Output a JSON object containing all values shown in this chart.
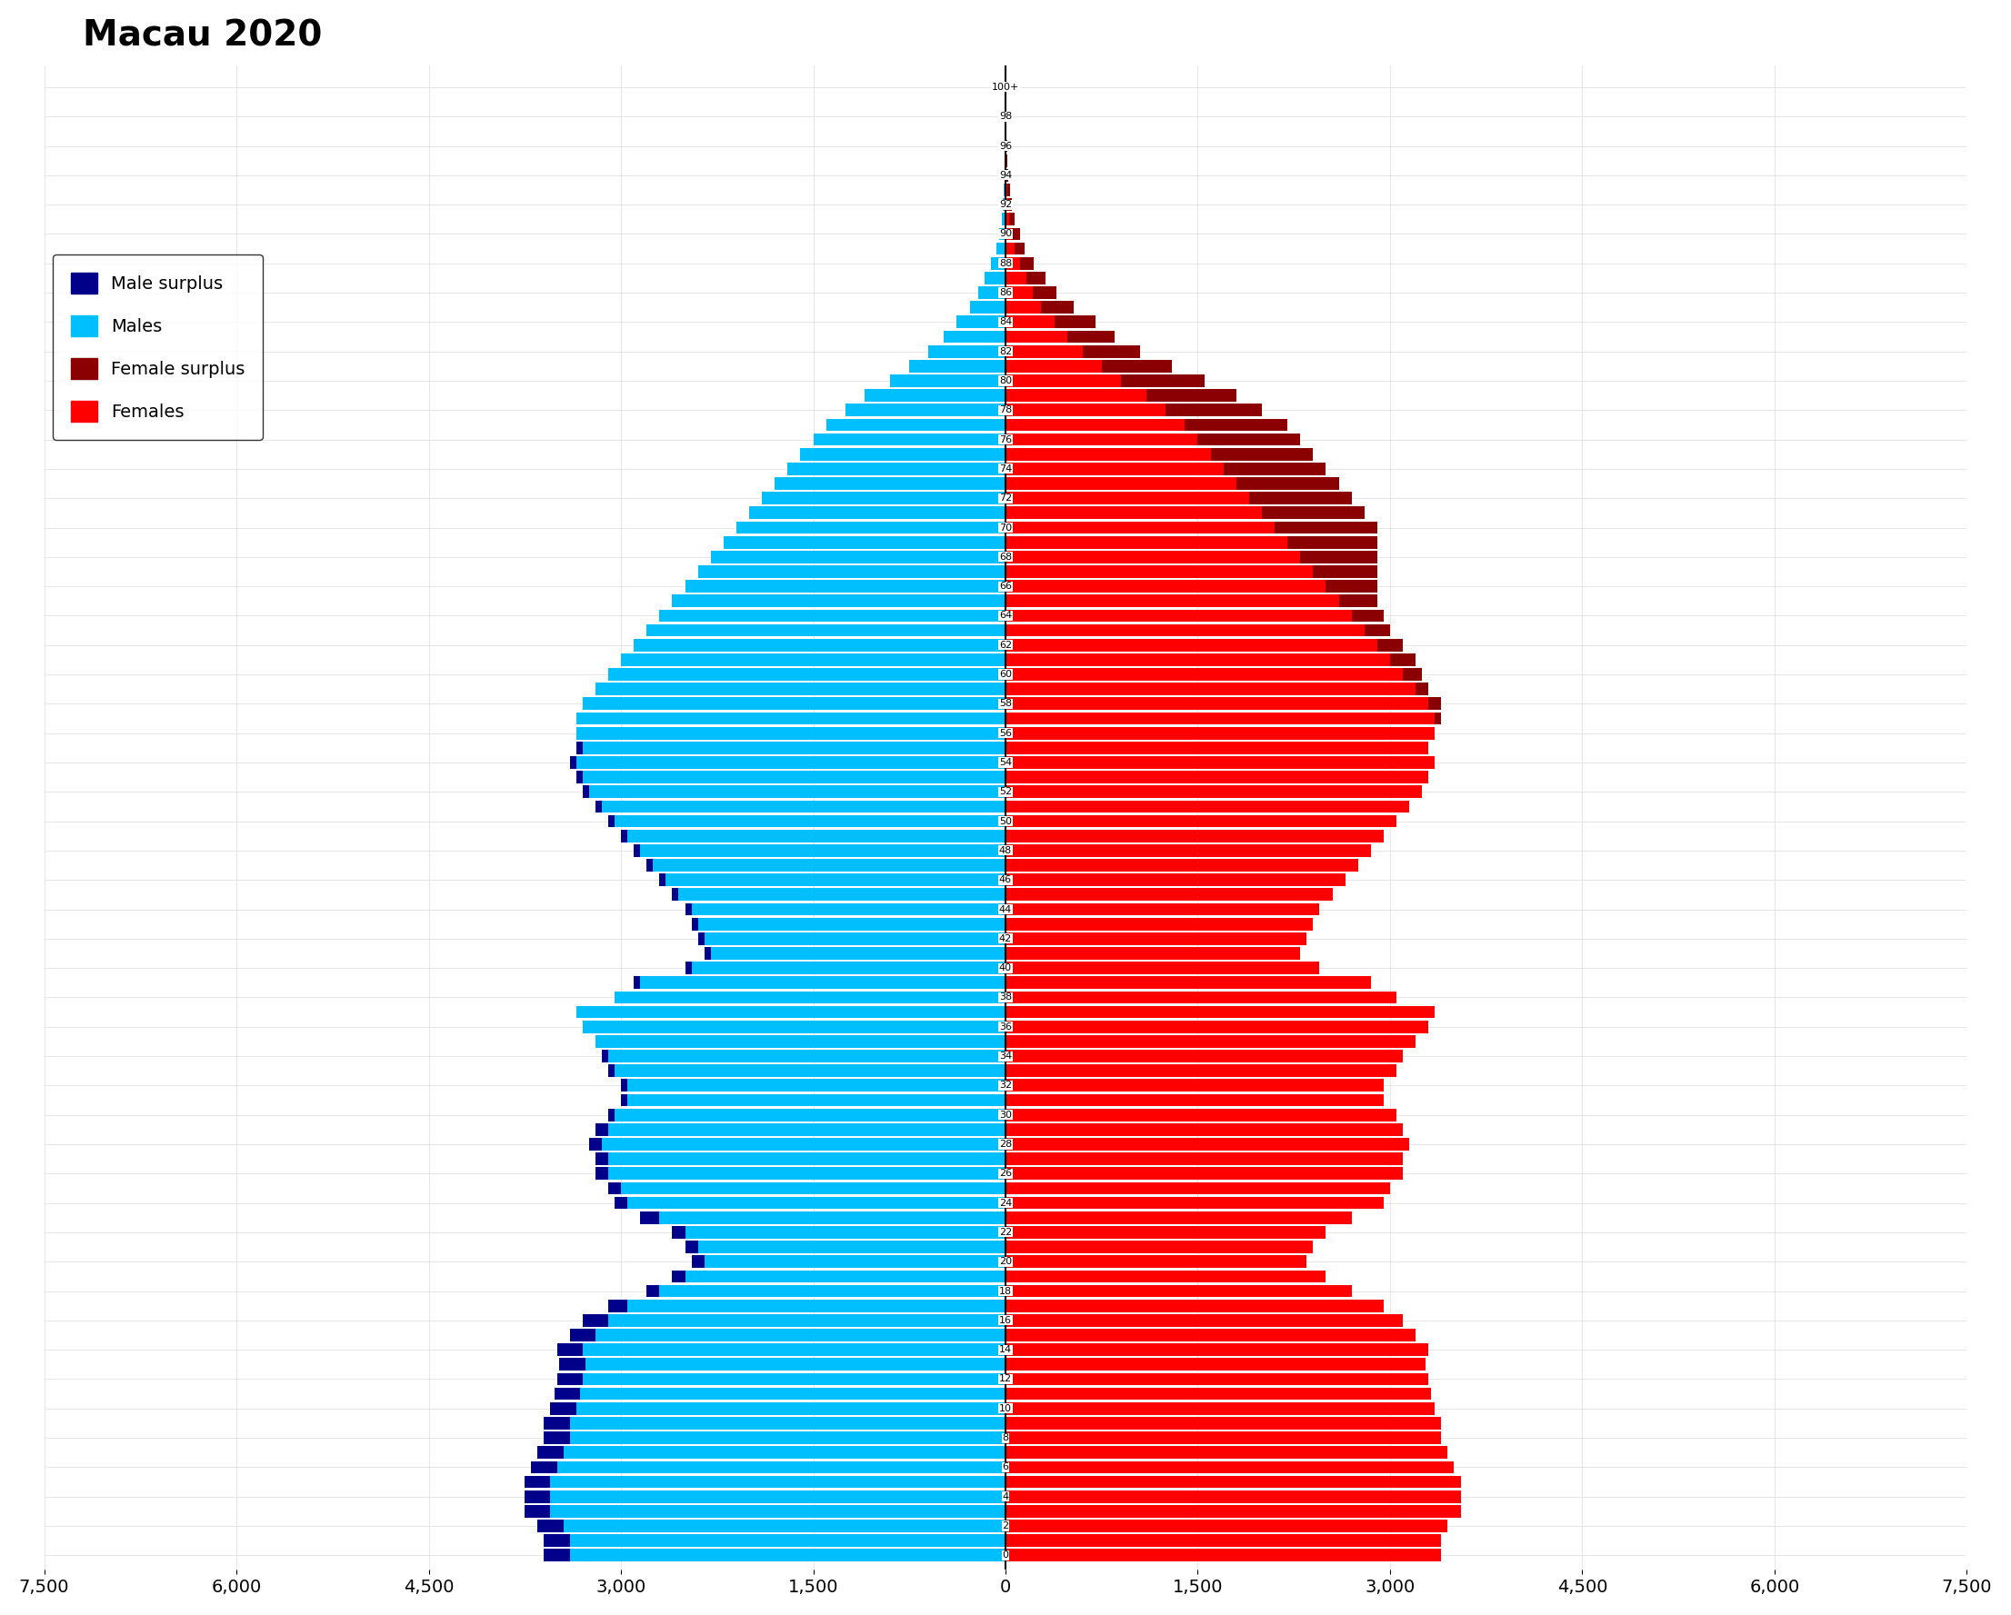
{
  "title": "Macau 2020",
  "xlim": 7500,
  "xticks": [
    -7500,
    -6000,
    -4500,
    -3000,
    -1500,
    0,
    1500,
    3000,
    4500,
    6000,
    7500
  ],
  "xticklabels": [
    "7,500",
    "6,000",
    "4,500",
    "3,000",
    "1,500",
    "0",
    "1,500",
    "3,000",
    "4,500",
    "6,000",
    "7,500"
  ],
  "male_color": "#00BFFF",
  "female_color": "#FF0000",
  "male_surplus_color": "#00008B",
  "female_surplus_color": "#8B0000",
  "ages": [
    0,
    1,
    2,
    3,
    4,
    5,
    6,
    7,
    8,
    9,
    10,
    11,
    12,
    13,
    14,
    15,
    16,
    17,
    18,
    19,
    20,
    21,
    22,
    23,
    24,
    25,
    26,
    27,
    28,
    29,
    30,
    31,
    32,
    33,
    34,
    35,
    36,
    37,
    38,
    39,
    40,
    41,
    42,
    43,
    44,
    45,
    46,
    47,
    48,
    49,
    50,
    51,
    52,
    53,
    54,
    55,
    56,
    57,
    58,
    59,
    60,
    61,
    62,
    63,
    64,
    65,
    66,
    67,
    68,
    69,
    70,
    71,
    72,
    73,
    74,
    75,
    76,
    77,
    78,
    79,
    80,
    81,
    82,
    83,
    84,
    85,
    86,
    87,
    88,
    89,
    90,
    91,
    92,
    93,
    94,
    95,
    96,
    97,
    98,
    99,
    100
  ],
  "male": [
    3600,
    3600,
    3650,
    3750,
    3750,
    3750,
    3700,
    3650,
    3600,
    3600,
    3550,
    3520,
    3500,
    3480,
    3500,
    3400,
    3300,
    3100,
    2800,
    2600,
    2450,
    2500,
    2600,
    2850,
    3050,
    3100,
    3200,
    3200,
    3250,
    3200,
    3100,
    3000,
    3000,
    3100,
    3150,
    3200,
    3300,
    3350,
    3050,
    2900,
    2500,
    2350,
    2400,
    2450,
    2500,
    2600,
    2700,
    2800,
    2900,
    3000,
    3100,
    3200,
    3300,
    3350,
    3400,
    3350,
    3350,
    3350,
    3300,
    3200,
    3100,
    3000,
    2900,
    2800,
    2700,
    2600,
    2500,
    2400,
    2300,
    2200,
    2100,
    2000,
    1900,
    1800,
    1700,
    1600,
    1500,
    1400,
    1250,
    1100,
    900,
    750,
    600,
    480,
    380,
    280,
    210,
    160,
    110,
    70,
    50,
    30,
    20,
    14,
    9,
    6,
    4,
    2,
    1,
    1,
    1
  ],
  "female": [
    3400,
    3400,
    3450,
    3550,
    3550,
    3550,
    3500,
    3450,
    3400,
    3400,
    3350,
    3320,
    3300,
    3280,
    3300,
    3200,
    3100,
    2950,
    2700,
    2500,
    2350,
    2400,
    2500,
    2700,
    2950,
    3000,
    3100,
    3100,
    3150,
    3100,
    3050,
    2950,
    2950,
    3050,
    3100,
    3200,
    3300,
    3350,
    3050,
    2850,
    2450,
    2300,
    2350,
    2400,
    2450,
    2550,
    2650,
    2750,
    2850,
    2950,
    3050,
    3150,
    3250,
    3300,
    3350,
    3300,
    3350,
    3400,
    3400,
    3300,
    3250,
    3200,
    3100,
    3000,
    2950,
    2900,
    2900,
    2900,
    2900,
    2900,
    2900,
    2800,
    2700,
    2600,
    2500,
    2400,
    2300,
    2200,
    2000,
    1800,
    1550,
    1300,
    1050,
    850,
    700,
    530,
    400,
    310,
    220,
    150,
    110,
    70,
    50,
    36,
    24,
    16,
    11,
    7,
    4,
    3,
    2
  ],
  "ages_labels": [
    "0",
    "2",
    "4",
    "6",
    "8",
    "10",
    "12",
    "14",
    "16",
    "18",
    "20",
    "22",
    "24",
    "26",
    "28",
    "30",
    "32",
    "34",
    "36",
    "38",
    "40",
    "42",
    "44",
    "46",
    "48",
    "50",
    "52",
    "54",
    "56",
    "58",
    "60",
    "62",
    "64",
    "66",
    "68",
    "70",
    "72",
    "74",
    "76",
    "78",
    "80",
    "82",
    "84",
    "86",
    "88",
    "90",
    "92",
    "94",
    "96",
    "98",
    "100+"
  ]
}
